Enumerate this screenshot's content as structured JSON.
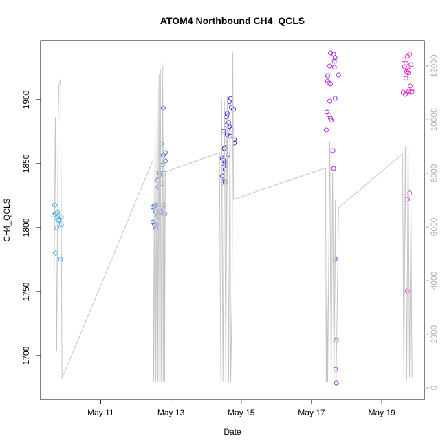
{
  "chart_data": {
    "type": "scatter",
    "title": "ATOM4 Northbound CH4_QCLS",
    "xlabel": "Date",
    "ylabel": "CH4_QCLS",
    "xlim": [
      9.29,
      20.21
    ],
    "ylim": [
      1665.6,
      1946.2
    ],
    "y2lim": [
      -436,
      12949
    ],
    "xticks": [
      {
        "value": 11,
        "label": "May 11"
      },
      {
        "value": 13,
        "label": "May 13"
      },
      {
        "value": 15,
        "label": "May 15"
      },
      {
        "value": 17,
        "label": "May 17"
      },
      {
        "value": 19,
        "label": "May 19"
      }
    ],
    "yticks": [
      1700,
      1750,
      1800,
      1850,
      1900
    ],
    "y2ticks": [
      0,
      2000,
      4000,
      6000,
      8000,
      10000,
      12000
    ],
    "series": [
      {
        "color": "#33aaee",
        "x": [
          9.69,
          9.71,
          9.77,
          9.67,
          9.75,
          9.79,
          9.83,
          9.88,
          9.88,
          9.75,
          9.71,
          9.86
        ],
        "values": [
          1817.7,
          1810.8,
          1811.8,
          1809.7,
          1807.5,
          1805.9,
          1805.4,
          1808.6,
          1802.2,
          1800,
          1780,
          1775.3
        ]
      },
      {
        "color": "#3366ee",
        "x": [
          12.78,
          12.72,
          12.84,
          12.78,
          12.84,
          12.76,
          12.68,
          12.8,
          12.66,
          12.62,
          12.74,
          12.64,
          12.8,
          12.76,
          12.53,
          12.59,
          12.64,
          12.49,
          12.57,
          12.7,
          12.82,
          12.64,
          12.49,
          12.53,
          12.57,
          12.59,
          12.72
        ],
        "values": [
          1893.5,
          1865.6,
          1858.6,
          1856.5,
          1852.2,
          1849,
          1843,
          1842.5,
          1840.3,
          1837,
          1834.4,
          1831.7,
          1817.7,
          1815.6,
          1817.2,
          1817.7,
          1816.7,
          1816.1,
          1812.4,
          1812.4,
          1810.8,
          1809.1,
          1804.3,
          1802.7,
          1799.5,
          1801.6,
          1811.3
        ]
      },
      {
        "color": "#3322ee",
        "x": [
          14.7,
          14.66,
          14.72,
          14.78,
          14.6,
          14.58,
          14.64,
          14.58,
          14.66,
          14.72,
          14.5,
          14.6,
          14.68,
          14.8,
          14.8,
          14.56,
          14.52,
          14.62,
          14.46,
          14.5,
          14.54,
          14.56,
          14.5,
          14.54,
          14.46,
          14.48,
          14.54
        ],
        "values": [
          1901,
          1898.4,
          1894,
          1892.5,
          1889.2,
          1886.6,
          1882.3,
          1880.1,
          1879,
          1876.9,
          1875.3,
          1872.6,
          1871.5,
          1868.8,
          1866.1,
          1865.6,
          1861.8,
          1857,
          1854.3,
          1852.7,
          1851.1,
          1849,
          1850,
          1845.7,
          1840.3,
          1835.5,
          1835.5
        ]
      },
      {
        "color": "#aa22ee",
        "x": [
          17.54,
          17.63,
          17.67,
          17.65,
          17.52,
          17.65,
          17.77,
          17.46,
          17.46,
          17.5,
          17.54,
          17.67,
          17.52,
          17.44,
          17.5,
          17.54,
          17.56,
          17.42,
          17.61,
          17.63,
          17.67,
          17.71,
          17.69,
          17.71
        ],
        "values": [
          1936.6,
          1935.5,
          1932.8,
          1930.1,
          1926.3,
          1925.3,
          1919.4,
          1918.8,
          1914.5,
          1912.9,
          1912.4,
          1901.1,
          1898.9,
          1890.3,
          1888.2,
          1885.5,
          1883.9,
          1876.3,
          1860.2,
          1846.2,
          1775.8,
          1711.8,
          1689.2,
          1678.5
        ]
      },
      {
        "color": "#dd22cc",
        "x": [
          19.79,
          19.73,
          19.63,
          19.69,
          19.83,
          19.65,
          19.77,
          19.71,
          19.75,
          19.69,
          19.81,
          19.77,
          19.61,
          19.86,
          19.83,
          19.67,
          19.79,
          19.73,
          19.73
        ],
        "values": [
          1935.5,
          1933.9,
          1931.2,
          1928.5,
          1927.4,
          1925.8,
          1923.1,
          1922,
          1921,
          1916.7,
          1910.8,
          1906.5,
          1905.9,
          1906.5,
          1905.9,
          1904.3,
          1826.9,
          1822,
          1750.5
        ]
      },
      {
        "type": "line",
        "axis": "y2",
        "color": "#c4c4c4",
        "x": [
          9.67,
          9.71,
          9.75,
          9.79,
          9.81,
          9.86,
          9.9,
          12.49,
          12.51,
          12.55,
          12.57,
          12.61,
          12.63,
          12.66,
          12.68,
          12.7,
          12.72,
          12.76,
          12.78,
          12.8,
          12.82,
          12.84,
          14.38,
          14.42,
          14.44,
          14.48,
          14.52,
          14.56,
          14.6,
          14.64,
          14.68,
          14.7,
          14.74,
          14.76,
          14.78,
          17.4,
          17.42,
          17.44,
          17.46,
          17.52,
          17.56,
          17.6,
          17.64,
          17.68,
          17.7,
          17.77,
          19.59,
          19.63,
          19.67,
          19.71,
          19.75,
          19.79,
          19.83,
          19.86
        ],
        "values": [
          3385,
          10100,
          1385,
          9850,
          11260,
          11500,
          360,
          8490,
          230,
          10000,
          230,
          11200,
          230,
          11700,
          230,
          11900,
          230,
          12000,
          230,
          12200,
          230,
          8050,
          8770,
          230,
          10800,
          230,
          10700,
          230,
          10900,
          230,
          10400,
          230,
          3300,
          12500,
          7030,
          8200,
          230,
          4000,
          230,
          9200,
          230,
          8000,
          230,
          7000,
          230,
          6720,
          8720,
          300,
          9000,
          300,
          9200,
          400,
          7000,
          400
        ]
      }
    ]
  }
}
